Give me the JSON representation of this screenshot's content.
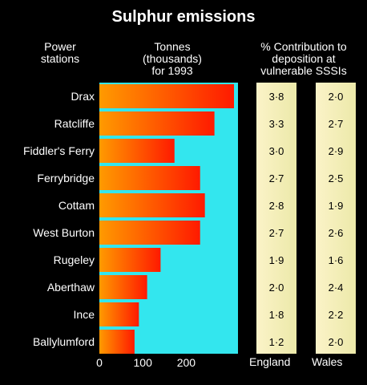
{
  "chart_data": {
    "type": "bar",
    "title": "Sulphur emissions",
    "row_header": [
      "Power",
      "stations"
    ],
    "value_header": [
      "Tonnes",
      "(thousands)",
      "for 1993"
    ],
    "contribution_header": [
      "% Contribution to",
      "deposition at",
      "vulnerable SSSIs"
    ],
    "categories": [
      "Drax",
      "Ratcliffe",
      "Fiddler's Ferry",
      "Ferrybridge",
      "Cottam",
      "West Burton",
      "Rugeley",
      "Aberthaw",
      "Ince",
      "Ballylumford"
    ],
    "values": [
      310,
      265,
      173,
      232,
      243,
      232,
      141,
      110,
      91,
      81
    ],
    "xlim": [
      0,
      310
    ],
    "xticks": [
      0,
      100,
      200
    ],
    "xtick_labels": [
      "0",
      "100",
      "200"
    ],
    "contribution_columns": [
      {
        "name": "England",
        "values": [
          "3·8",
          "3·3",
          "3·0",
          "2·7",
          "2·8",
          "2·7",
          "1·9",
          "2·0",
          "1·8",
          "1·2"
        ]
      },
      {
        "name": "Wales",
        "values": [
          "2·0",
          "2·7",
          "2·9",
          "2·5",
          "1·9",
          "2·6",
          "1·6",
          "2·4",
          "2·2",
          "2·0"
        ]
      }
    ],
    "colors": {
      "background": "#000000",
      "panel": "#33e6ee",
      "bar_start": "#ff9a00",
      "bar_end": "#ff1a00",
      "column_fill": "#f4f0b8"
    }
  }
}
